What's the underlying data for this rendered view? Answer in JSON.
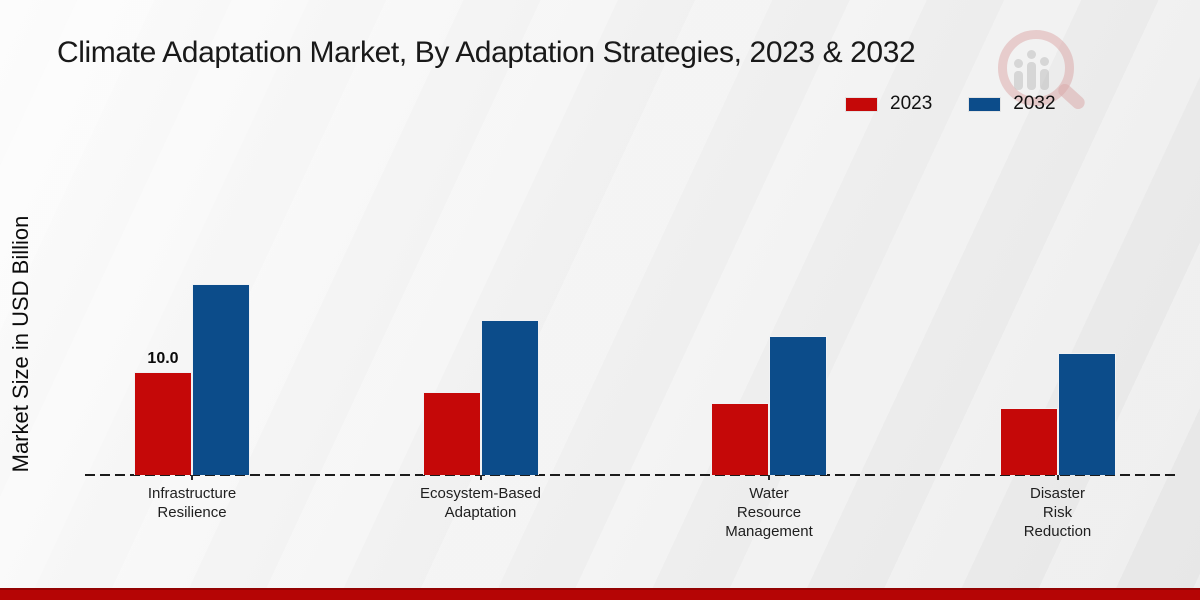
{
  "header": {
    "title": "Climate Adaptation Market, By Adaptation Strategies, 2023 & 2032"
  },
  "axes": {
    "y_label": "Market Size in USD Billion"
  },
  "legend": {
    "items": [
      {
        "label": "2023",
        "color": "#c50808"
      },
      {
        "label": "2032",
        "color": "#0c4c8a"
      }
    ]
  },
  "colors": {
    "series_2023": "#c50808",
    "series_2032": "#0c4c8a",
    "footer_band": "#b50505",
    "baseline": "#1b1b1b"
  },
  "watermark": {
    "name": "market-research-future-logo"
  },
  "chart_data": {
    "type": "bar",
    "title": "Climate Adaptation Market, By Adaptation Strategies, 2023 & 2032",
    "xlabel": "",
    "ylabel": "Market Size in USD Billion",
    "categories": [
      "Infrastructure\nResilience",
      "Ecosystem-Based\nAdaptation",
      "Water\nResource\nManagement",
      "Disaster\nRisk\nReduction"
    ],
    "series": [
      {
        "name": "2023",
        "color": "#c50808",
        "values": [
          10.0,
          8.0,
          7.0,
          6.5
        ]
      },
      {
        "name": "2032",
        "color": "#0c4c8a",
        "values": [
          18.5,
          15.0,
          13.5,
          11.8
        ]
      }
    ],
    "value_labels": [
      {
        "category_index": 0,
        "series_index": 0,
        "text": "10.0"
      }
    ],
    "ylim": [
      0,
      20
    ],
    "grid": false,
    "y_ticks_visible": false,
    "legend_position": "top-right",
    "baseline_style": "dashed"
  }
}
